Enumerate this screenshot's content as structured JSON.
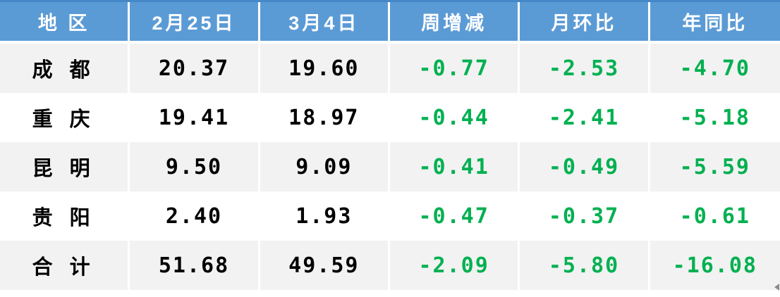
{
  "chart_data": {
    "type": "table",
    "columns": [
      "地 区",
      "2月25日",
      "3月4日",
      "周增减",
      "月环比",
      "年同比"
    ],
    "rows": [
      [
        "成 都",
        20.37,
        19.6,
        -0.77,
        -2.53,
        -4.7
      ],
      [
        "重 庆",
        19.41,
        18.97,
        -0.44,
        -2.41,
        -5.18
      ],
      [
        "昆 明",
        9.5,
        9.09,
        -0.41,
        -0.49,
        -5.59
      ],
      [
        "贵 阳",
        2.4,
        1.93,
        -0.47,
        -0.37,
        -0.61
      ],
      [
        "合 计",
        51.68,
        49.59,
        -2.09,
        -5.8,
        -16.08
      ]
    ],
    "title": "",
    "layout_hints": {
      "header_position": "top",
      "striped_rows": true,
      "grid": "white-separators"
    }
  },
  "header": {
    "cells": [
      "地 区",
      "2月25日",
      "3月4日",
      "周增减",
      "月环比",
      "年同比"
    ]
  },
  "rows": [
    {
      "cells": [
        "成 都",
        "20.37",
        "19.60",
        "-0.77",
        "-2.53",
        "-4.70"
      ]
    },
    {
      "cells": [
        "重 庆",
        "19.41",
        "18.97",
        "-0.44",
        "-2.41",
        "-5.18"
      ]
    },
    {
      "cells": [
        "昆 明",
        "9.50",
        "9.09",
        "-0.41",
        "-0.49",
        "-5.59"
      ]
    },
    {
      "cells": [
        "贵 阳",
        "2.40",
        "1.93",
        "-0.47",
        "-0.37",
        "-0.61"
      ]
    },
    {
      "cells": [
        "合 计",
        "51.68",
        "49.59",
        "-2.09",
        "-5.80",
        "-16.08"
      ]
    }
  ],
  "icons": {
    "scroll_arrow": "left-pointing-triangle"
  },
  "colors": {
    "header_bg": "#5B9BD5",
    "header_top_border": "#4587C7",
    "header_text": "#FFFFFF",
    "row_shaded": "#F2F2F2",
    "row_plain": "#FFFFFF",
    "value_text": "#000000",
    "value_negative_green": "#00B050",
    "grid_separator": "#FFFFFF",
    "scroll_arrow": "#8C8C8C"
  }
}
